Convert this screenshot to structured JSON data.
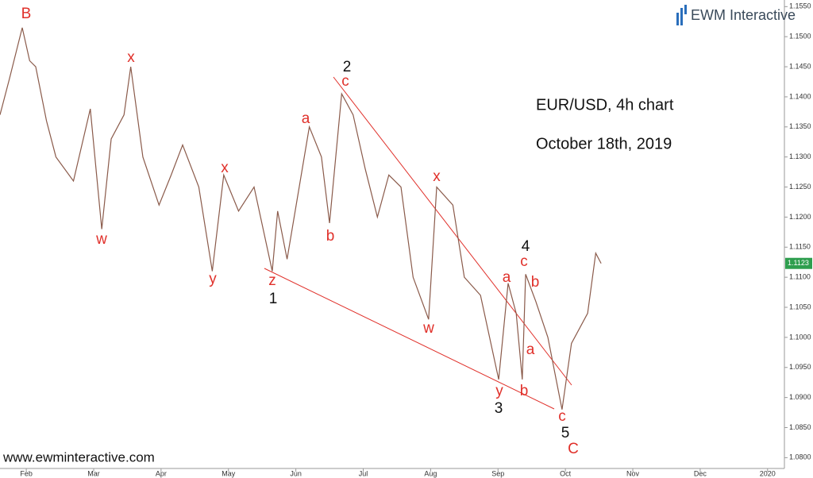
{
  "chart_data": {
    "type": "line",
    "title": "EUR/USD, 4h chart",
    "subtitle": "October 18th, 2019",
    "brand": "EWM Interactive",
    "website": "www.ewminteractive.com",
    "xlim": [
      -0.39,
      11.25
    ],
    "xticks": [
      {
        "value": 0,
        "label": "Feb"
      },
      {
        "value": 1,
        "label": "Mar"
      },
      {
        "value": 2,
        "label": "Apr"
      },
      {
        "value": 3,
        "label": "May"
      },
      {
        "value": 4,
        "label": "Jun"
      },
      {
        "value": 5,
        "label": "Jul"
      },
      {
        "value": 6,
        "label": "Aug"
      },
      {
        "value": 7,
        "label": "Sep"
      },
      {
        "value": 8,
        "label": "Oct"
      },
      {
        "value": 9,
        "label": "Nov"
      },
      {
        "value": 10,
        "label": "Dec"
      },
      {
        "value": 11,
        "label": "2020"
      }
    ],
    "ylim": [
      1.0782,
      1.1561
    ],
    "yticks": [
      {
        "value": 1.08,
        "label": "1.0800"
      },
      {
        "value": 1.085,
        "label": "1.0850"
      },
      {
        "value": 1.09,
        "label": "1.0900"
      },
      {
        "value": 1.095,
        "label": "1.0950"
      },
      {
        "value": 1.1,
        "label": "1.1000"
      },
      {
        "value": 1.105,
        "label": "1.1050"
      },
      {
        "value": 1.11,
        "label": "1.1100"
      },
      {
        "value": 1.115,
        "label": "1.1150"
      },
      {
        "value": 1.12,
        "label": "1.1200"
      },
      {
        "value": 1.125,
        "label": "1.1250"
      },
      {
        "value": 1.13,
        "label": "1.1300"
      },
      {
        "value": 1.135,
        "label": "1.1350"
      },
      {
        "value": 1.14,
        "label": "1.1400"
      },
      {
        "value": 1.145,
        "label": "1.1450"
      },
      {
        "value": 1.15,
        "label": "1.1500"
      },
      {
        "value": 1.155,
        "label": "1.1550"
      }
    ],
    "x": [
      -0.39,
      -0.25,
      -0.06,
      0.05,
      0.14,
      0.3,
      0.44,
      0.7,
      0.95,
      1.12,
      1.26,
      1.45,
      1.55,
      1.73,
      1.97,
      2.15,
      2.32,
      2.56,
      2.76,
      2.93,
      3.15,
      3.38,
      3.65,
      3.73,
      3.87,
      4.2,
      4.38,
      4.5,
      4.68,
      4.85,
      5.03,
      5.21,
      5.38,
      5.56,
      5.74,
      5.97,
      6.09,
      6.33,
      6.5,
      6.74,
      7.01,
      7.15,
      7.27,
      7.36,
      7.41,
      7.56,
      7.74,
      7.95,
      8.09,
      8.33,
      8.45,
      8.53
    ],
    "series": [
      {
        "name": "EUR/USD",
        "color": "#8a5a4a",
        "values": [
          1.137,
          1.143,
          1.1515,
          1.146,
          1.145,
          1.136,
          1.13,
          1.126,
          1.138,
          1.118,
          1.133,
          1.137,
          1.145,
          1.13,
          1.122,
          1.127,
          1.132,
          1.125,
          1.111,
          1.127,
          1.121,
          1.125,
          1.111,
          1.121,
          1.113,
          1.135,
          1.13,
          1.119,
          1.1405,
          1.137,
          1.128,
          1.12,
          1.127,
          1.125,
          1.11,
          1.103,
          1.125,
          1.122,
          1.11,
          1.107,
          1.093,
          1.109,
          1.104,
          1.093,
          1.1105,
          1.106,
          1.1,
          1.088,
          1.099,
          1.104,
          1.114,
          1.1123
        ]
      }
    ],
    "last_price": {
      "value": 1.1123,
      "label": "1.1123",
      "color": "#2e9e4e"
    },
    "annotations": [
      {
        "text": "B",
        "color": "#e0302a"
      },
      {
        "text": "x",
        "color": "#e0302a"
      },
      {
        "text": "w",
        "color": "#e0302a"
      },
      {
        "text": "x",
        "color": "#e0302a"
      },
      {
        "text": "y",
        "color": "#e0302a"
      },
      {
        "text": "z",
        "color": "#e0302a"
      },
      {
        "text": "1",
        "color": "#111111"
      },
      {
        "text": "a",
        "color": "#e0302a"
      },
      {
        "text": "b",
        "color": "#e0302a"
      },
      {
        "text": "2",
        "color": "#111111"
      },
      {
        "text": "c",
        "color": "#e0302a"
      },
      {
        "text": "x",
        "color": "#e0302a"
      },
      {
        "text": "w",
        "color": "#e0302a"
      },
      {
        "text": "a",
        "color": "#e0302a"
      },
      {
        "text": "c",
        "color": "#e0302a"
      },
      {
        "text": "4",
        "color": "#111111"
      },
      {
        "text": "b",
        "color": "#e0302a"
      },
      {
        "text": "a",
        "color": "#e0302a"
      },
      {
        "text": "y",
        "color": "#e0302a"
      },
      {
        "text": "3",
        "color": "#111111"
      },
      {
        "text": "b",
        "color": "#e0302a"
      },
      {
        "text": "c",
        "color": "#e0302a"
      },
      {
        "text": "5",
        "color": "#111111"
      },
      {
        "text": "C",
        "color": "#e0302a"
      }
    ]
  }
}
